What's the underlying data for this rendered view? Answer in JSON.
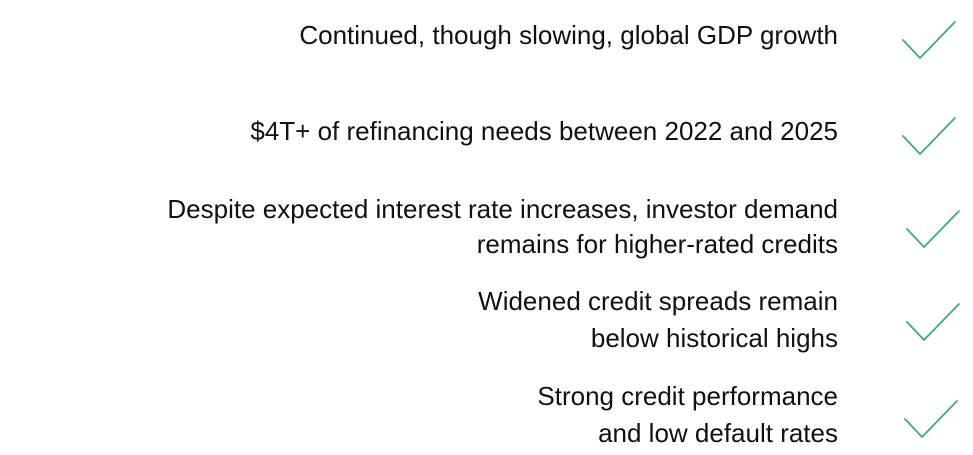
{
  "items": [
    {
      "lines": [
        "Continued, though slowing, global GDP growth"
      ]
    },
    {
      "lines": [
        "$4T+ of refinancing needs between 2022 and 2025"
      ]
    },
    {
      "lines": [
        "Despite expected interest rate increases, investor demand",
        "remains for higher-rated credits"
      ]
    },
    {
      "lines": [
        "Widened credit spreads remain",
        "below historical highs"
      ]
    },
    {
      "lines": [
        "Strong credit performance",
        "and low default rates"
      ]
    }
  ]
}
